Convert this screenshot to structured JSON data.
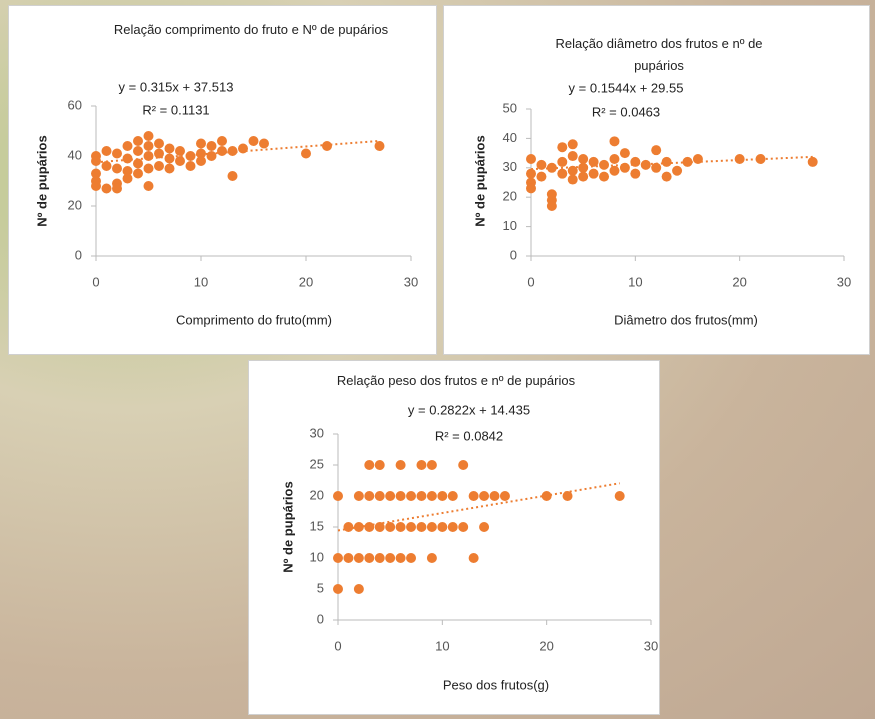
{
  "chart_data": [
    {
      "type": "scatter",
      "title": "Relação comprimento do fruto e Nº de pupários",
      "x_label": "Comprimento do fruto(mm)",
      "y_label": "Nº de pupários",
      "color": "#ed7d31",
      "x": [
        0,
        0,
        0,
        0,
        0,
        1,
        1,
        1,
        2,
        2,
        2,
        2,
        3,
        3,
        3,
        3,
        4,
        4,
        4,
        4,
        5,
        5,
        5,
        5,
        5,
        6,
        6,
        6,
        7,
        7,
        7,
        8,
        8,
        9,
        9,
        10,
        10,
        10,
        11,
        11,
        12,
        12,
        13,
        13,
        14,
        15,
        16,
        20,
        22,
        27
      ],
      "values": [
        40,
        38,
        33,
        30,
        28,
        42,
        36,
        27,
        41,
        35,
        29,
        27,
        44,
        39,
        34,
        31,
        46,
        42,
        37,
        33,
        48,
        44,
        40,
        35,
        28,
        45,
        41,
        36,
        43,
        39,
        35,
        42,
        38,
        40,
        36,
        45,
        41,
        38,
        44,
        40,
        46,
        42,
        32,
        42,
        43,
        46,
        45,
        41,
        44,
        44
      ],
      "trendline": {
        "equation": "y = 0.315x + 37.513",
        "r_squared_label": "R² = 0.1131",
        "slope": 0.315,
        "intercept": 37.513
      },
      "xlim": [
        0,
        30
      ],
      "xticks": [
        0,
        10,
        20,
        30
      ],
      "ylim": [
        0,
        60
      ],
      "yticks": [
        0,
        20,
        40,
        60
      ]
    },
    {
      "type": "scatter",
      "title": "Relação diâmetro dos frutos e nº de pupários",
      "x_label": "Diâmetro dos frutos(mm)",
      "y_label": "Nº de pupários",
      "color": "#ed7d31",
      "x": [
        0,
        0,
        0,
        0,
        1,
        1,
        2,
        2,
        2,
        2,
        3,
        3,
        3,
        4,
        4,
        4,
        4,
        5,
        5,
        5,
        6,
        6,
        7,
        7,
        8,
        8,
        8,
        9,
        9,
        10,
        10,
        11,
        12,
        12,
        13,
        13,
        14,
        15,
        16,
        20,
        22,
        27
      ],
      "values": [
        33,
        28,
        25,
        23,
        31,
        27,
        30,
        21,
        19,
        17,
        37,
        32,
        28,
        38,
        34,
        29,
        26,
        33,
        30,
        27,
        32,
        28,
        31,
        27,
        39,
        33,
        29,
        35,
        30,
        32,
        28,
        31,
        36,
        30,
        27,
        32,
        29,
        32,
        33,
        33,
        33,
        32
      ],
      "trendline": {
        "equation": "y = 0.1544x + 29.55",
        "r_squared_label": "R² = 0.0463",
        "slope": 0.1544,
        "intercept": 29.55
      },
      "xlim": [
        0,
        30
      ],
      "xticks": [
        0,
        10,
        20,
        30
      ],
      "ylim": [
        0,
        50
      ],
      "yticks": [
        0,
        10,
        20,
        30,
        40,
        50
      ]
    },
    {
      "type": "scatter",
      "title": "Relação peso dos frutos e nº de pupários",
      "x_label": "Peso dos frutos(g)",
      "y_label": "Nº de pupários",
      "color": "#ed7d31",
      "x": [
        0,
        2,
        0,
        1,
        2,
        3,
        4,
        5,
        6,
        7,
        9,
        13,
        1,
        2,
        3,
        4,
        5,
        6,
        7,
        8,
        9,
        10,
        11,
        12,
        14,
        0,
        2,
        3,
        4,
        5,
        6,
        7,
        8,
        9,
        10,
        11,
        13,
        14,
        15,
        16,
        20,
        22,
        27,
        3,
        4,
        6,
        8,
        9,
        12
      ],
      "values": [
        5,
        5,
        10,
        10,
        10,
        10,
        10,
        10,
        10,
        10,
        10,
        10,
        15,
        15,
        15,
        15,
        15,
        15,
        15,
        15,
        15,
        15,
        15,
        15,
        15,
        20,
        20,
        20,
        20,
        20,
        20,
        20,
        20,
        20,
        20,
        20,
        20,
        20,
        20,
        20,
        20,
        20,
        20,
        25,
        25,
        25,
        25,
        25,
        25
      ],
      "trendline": {
        "equation": "y = 0.2822x + 14.435",
        "r_squared_label": "R² = 0.0842",
        "slope": 0.2822,
        "intercept": 14.435
      },
      "xlim": [
        0,
        30
      ],
      "xticks": [
        0,
        10,
        20,
        30
      ],
      "ylim": [
        0,
        30
      ],
      "yticks": [
        0,
        5,
        10,
        15,
        20,
        25,
        30
      ]
    }
  ]
}
